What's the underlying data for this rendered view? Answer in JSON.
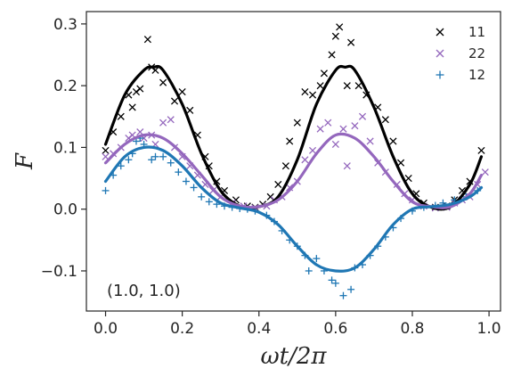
{
  "chart_data": {
    "type": "scatter",
    "xlabel": "ωt/2π",
    "ylabel": "F",
    "xlim": [
      -0.05,
      1.03
    ],
    "ylim": [
      -0.165,
      0.32
    ],
    "xticks": [
      0.0,
      0.2,
      0.4,
      0.6,
      0.8,
      1.0
    ],
    "xtick_labels": [
      "0.0",
      "0.2",
      "0.4",
      "0.6",
      "0.8",
      "1.0"
    ],
    "yticks": [
      -0.1,
      0.0,
      0.1,
      0.2,
      0.3
    ],
    "ytick_labels": [
      "−0.1",
      "0.0",
      "0.1",
      "0.2",
      "0.3"
    ],
    "grid": false,
    "legend_position": "top-right",
    "annotation": "(1.0, 1.0)",
    "series": [
      {
        "name": "11",
        "color": "#000000",
        "marker": "x",
        "fit_x": [
          0.0,
          0.05,
          0.1,
          0.125,
          0.15,
          0.2,
          0.25,
          0.3,
          0.35,
          0.4,
          0.45,
          0.5,
          0.55,
          0.6,
          0.625,
          0.65,
          0.7,
          0.75,
          0.8,
          0.85,
          0.9,
          0.95,
          0.98
        ],
        "fit_y": [
          0.105,
          0.185,
          0.225,
          0.23,
          0.225,
          0.17,
          0.09,
          0.03,
          0.005,
          0.004,
          0.02,
          0.08,
          0.17,
          0.225,
          0.23,
          0.225,
          0.165,
          0.085,
          0.025,
          0.003,
          0.004,
          0.04,
          0.085
        ],
        "points": [
          [
            0.0,
            0.095
          ],
          [
            0.02,
            0.125
          ],
          [
            0.04,
            0.15
          ],
          [
            0.06,
            0.185
          ],
          [
            0.07,
            0.165
          ],
          [
            0.08,
            0.19
          ],
          [
            0.09,
            0.195
          ],
          [
            0.11,
            0.275
          ],
          [
            0.12,
            0.23
          ],
          [
            0.13,
            0.225
          ],
          [
            0.15,
            0.205
          ],
          [
            0.18,
            0.175
          ],
          [
            0.2,
            0.19
          ],
          [
            0.22,
            0.16
          ],
          [
            0.24,
            0.12
          ],
          [
            0.26,
            0.085
          ],
          [
            0.27,
            0.07
          ],
          [
            0.29,
            0.045
          ],
          [
            0.31,
            0.03
          ],
          [
            0.34,
            0.015
          ],
          [
            0.37,
            0.005
          ],
          [
            0.39,
            0.003
          ],
          [
            0.41,
            0.008
          ],
          [
            0.43,
            0.02
          ],
          [
            0.45,
            0.04
          ],
          [
            0.47,
            0.07
          ],
          [
            0.48,
            0.11
          ],
          [
            0.5,
            0.14
          ],
          [
            0.52,
            0.19
          ],
          [
            0.54,
            0.185
          ],
          [
            0.56,
            0.2
          ],
          [
            0.57,
            0.22
          ],
          [
            0.59,
            0.25
          ],
          [
            0.6,
            0.28
          ],
          [
            0.61,
            0.295
          ],
          [
            0.63,
            0.2
          ],
          [
            0.64,
            0.27
          ],
          [
            0.66,
            0.2
          ],
          [
            0.68,
            0.185
          ],
          [
            0.71,
            0.165
          ],
          [
            0.73,
            0.145
          ],
          [
            0.75,
            0.11
          ],
          [
            0.77,
            0.075
          ],
          [
            0.79,
            0.05
          ],
          [
            0.81,
            0.025
          ],
          [
            0.83,
            0.01
          ],
          [
            0.86,
            0.003
          ],
          [
            0.89,
            0.005
          ],
          [
            0.91,
            0.015
          ],
          [
            0.93,
            0.03
          ],
          [
            0.95,
            0.045
          ],
          [
            0.98,
            0.095
          ]
        ]
      },
      {
        "name": "22",
        "color": "#9467bd",
        "marker": "x",
        "fit_x": [
          0.0,
          0.05,
          0.1,
          0.15,
          0.2,
          0.25,
          0.3,
          0.35,
          0.4,
          0.45,
          0.5,
          0.55,
          0.6,
          0.65,
          0.7,
          0.75,
          0.8,
          0.85,
          0.9,
          0.95,
          0.98
        ],
        "fit_y": [
          0.075,
          0.105,
          0.12,
          0.115,
          0.09,
          0.055,
          0.02,
          0.005,
          0.004,
          0.015,
          0.045,
          0.09,
          0.12,
          0.115,
          0.085,
          0.045,
          0.012,
          0.004,
          0.004,
          0.025,
          0.055
        ],
        "points": [
          [
            0.0,
            0.085
          ],
          [
            0.02,
            0.09
          ],
          [
            0.04,
            0.1
          ],
          [
            0.06,
            0.115
          ],
          [
            0.07,
            0.12
          ],
          [
            0.09,
            0.125
          ],
          [
            0.1,
            0.115
          ],
          [
            0.12,
            0.12
          ],
          [
            0.13,
            0.105
          ],
          [
            0.15,
            0.14
          ],
          [
            0.17,
            0.145
          ],
          [
            0.18,
            0.1
          ],
          [
            0.2,
            0.085
          ],
          [
            0.22,
            0.07
          ],
          [
            0.24,
            0.055
          ],
          [
            0.26,
            0.04
          ],
          [
            0.28,
            0.03
          ],
          [
            0.3,
            0.02
          ],
          [
            0.33,
            0.01
          ],
          [
            0.36,
            0.005
          ],
          [
            0.39,
            0.002
          ],
          [
            0.42,
            0.005
          ],
          [
            0.44,
            0.015
          ],
          [
            0.46,
            0.02
          ],
          [
            0.48,
            0.035
          ],
          [
            0.5,
            0.045
          ],
          [
            0.52,
            0.08
          ],
          [
            0.54,
            0.095
          ],
          [
            0.56,
            0.13
          ],
          [
            0.58,
            0.14
          ],
          [
            0.6,
            0.105
          ],
          [
            0.62,
            0.13
          ],
          [
            0.63,
            0.07
          ],
          [
            0.65,
            0.135
          ],
          [
            0.67,
            0.15
          ],
          [
            0.69,
            0.11
          ],
          [
            0.71,
            0.075
          ],
          [
            0.73,
            0.06
          ],
          [
            0.76,
            0.04
          ],
          [
            0.78,
            0.025
          ],
          [
            0.8,
            0.015
          ],
          [
            0.83,
            0.005
          ],
          [
            0.86,
            0.002
          ],
          [
            0.89,
            0.003
          ],
          [
            0.91,
            0.01
          ],
          [
            0.93,
            0.015
          ],
          [
            0.95,
            0.02
          ],
          [
            0.97,
            0.04
          ],
          [
            0.99,
            0.06
          ]
        ]
      },
      {
        "name": "12",
        "color": "#1f77b4",
        "marker": "+",
        "fit_x": [
          0.0,
          0.05,
          0.1,
          0.15,
          0.2,
          0.25,
          0.3,
          0.35,
          0.4,
          0.45,
          0.5,
          0.55,
          0.6,
          0.65,
          0.7,
          0.75,
          0.8,
          0.85,
          0.9,
          0.95,
          0.98
        ],
        "fit_y": [
          0.045,
          0.085,
          0.1,
          0.095,
          0.07,
          0.035,
          0.01,
          0.002,
          -0.005,
          -0.025,
          -0.06,
          -0.09,
          -0.1,
          -0.095,
          -0.065,
          -0.025,
          0.0,
          0.004,
          0.008,
          0.02,
          0.035
        ],
        "points": [
          [
            0.0,
            0.03
          ],
          [
            0.02,
            0.055
          ],
          [
            0.04,
            0.07
          ],
          [
            0.06,
            0.08
          ],
          [
            0.07,
            0.09
          ],
          [
            0.08,
            0.11
          ],
          [
            0.09,
            0.115
          ],
          [
            0.1,
            0.105
          ],
          [
            0.12,
            0.08
          ],
          [
            0.13,
            0.085
          ],
          [
            0.15,
            0.085
          ],
          [
            0.17,
            0.075
          ],
          [
            0.19,
            0.06
          ],
          [
            0.21,
            0.045
          ],
          [
            0.23,
            0.035
          ],
          [
            0.25,
            0.02
          ],
          [
            0.27,
            0.012
          ],
          [
            0.29,
            0.008
          ],
          [
            0.31,
            0.005
          ],
          [
            0.33,
            0.003
          ],
          [
            0.35,
            0.001
          ],
          [
            0.37,
            0.0
          ],
          [
            0.39,
            -0.003
          ],
          [
            0.42,
            -0.01
          ],
          [
            0.44,
            -0.02
          ],
          [
            0.46,
            -0.035
          ],
          [
            0.48,
            -0.05
          ],
          [
            0.5,
            -0.06
          ],
          [
            0.52,
            -0.075
          ],
          [
            0.53,
            -0.1
          ],
          [
            0.55,
            -0.08
          ],
          [
            0.57,
            -0.1
          ],
          [
            0.59,
            -0.115
          ],
          [
            0.6,
            -0.12
          ],
          [
            0.62,
            -0.14
          ],
          [
            0.64,
            -0.13
          ],
          [
            0.65,
            -0.095
          ],
          [
            0.67,
            -0.09
          ],
          [
            0.69,
            -0.075
          ],
          [
            0.71,
            -0.06
          ],
          [
            0.73,
            -0.045
          ],
          [
            0.75,
            -0.03
          ],
          [
            0.77,
            -0.015
          ],
          [
            0.8,
            -0.003
          ],
          [
            0.83,
            0.003
          ],
          [
            0.86,
            0.006
          ],
          [
            0.88,
            0.01
          ],
          [
            0.91,
            0.015
          ],
          [
            0.94,
            0.02
          ],
          [
            0.97,
            0.03
          ]
        ]
      }
    ]
  }
}
